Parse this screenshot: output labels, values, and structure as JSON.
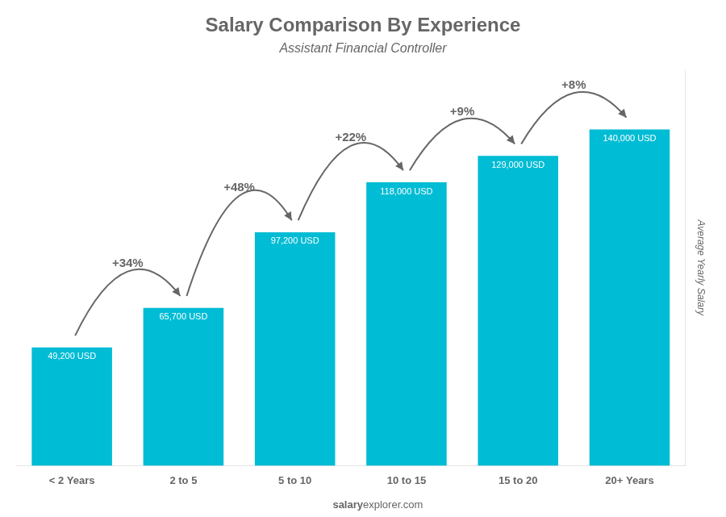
{
  "chart_data": {
    "type": "bar",
    "title": "Salary Comparison By Experience",
    "subtitle": "Assistant Financial Controller",
    "categories": [
      "< 2 Years",
      "2 to 5",
      "5 to 10",
      "10 to 15",
      "15 to 20",
      "20+ Years"
    ],
    "values": [
      49200,
      65700,
      97200,
      118000,
      129000,
      140000
    ],
    "value_labels": [
      "49,200 USD",
      "65,700 USD",
      "97,200 USD",
      "118,000 USD",
      "129,000 USD",
      "140,000 USD"
    ],
    "data_labels": true,
    "color": "#00bcd4",
    "ylim": [
      0,
      165000
    ],
    "y_label": "Average Yearly Salary",
    "annotations": [
      "+34%",
      "+48%",
      "+22%",
      "+9%",
      "+8%"
    ],
    "footer": [
      "salary",
      "explorer.com"
    ],
    "grid": false,
    "tick_labels": "x"
  }
}
